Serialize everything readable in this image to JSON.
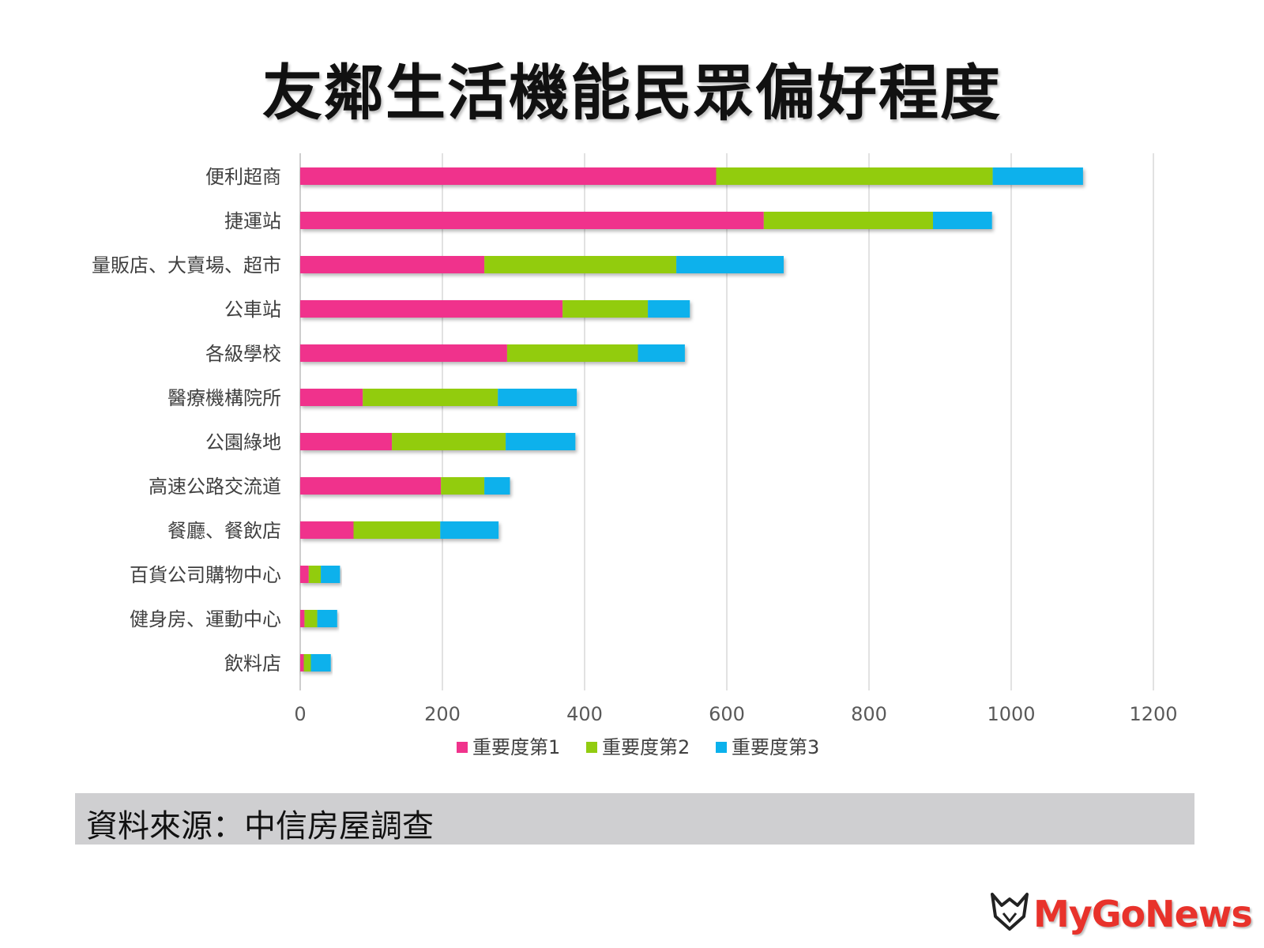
{
  "title": "友鄰生活機能民眾偏好程度",
  "source": "資料來源：中信房屋調查",
  "logo_text": "MyGoNews",
  "chart_data": {
    "type": "bar",
    "orientation": "horizontal",
    "stacked": true,
    "categories": [
      "便利超商",
      "捷運站",
      "量販店、大賣場、超市",
      "公車站",
      "各級學校",
      "醫療機構院所",
      "公園綠地",
      "高速公路交流道",
      "餐廳、餐飲店",
      "百貨公司購物中心",
      "健身房、運動中心",
      "飲料店"
    ],
    "series": [
      {
        "name": "重要度第1",
        "color": "#f0338c",
        "values": [
          585,
          652,
          259,
          369,
          291,
          88,
          129,
          198,
          75,
          12,
          6,
          5
        ]
      },
      {
        "name": "重要度第2",
        "color": "#92cc10",
        "values": [
          389,
          238,
          270,
          120,
          184,
          190,
          160,
          61,
          122,
          17,
          18,
          10
        ]
      },
      {
        "name": "重要度第3",
        "color": "#0bb1ec",
        "values": [
          127,
          83,
          151,
          59,
          66,
          111,
          98,
          36,
          82,
          27,
          28,
          28
        ]
      }
    ],
    "xticks": [
      "0",
      "200",
      "400",
      "600",
      "800",
      "1000",
      "1200"
    ],
    "xlim": [
      0,
      1200
    ],
    "grid": "vertical",
    "legend": "bottom"
  }
}
